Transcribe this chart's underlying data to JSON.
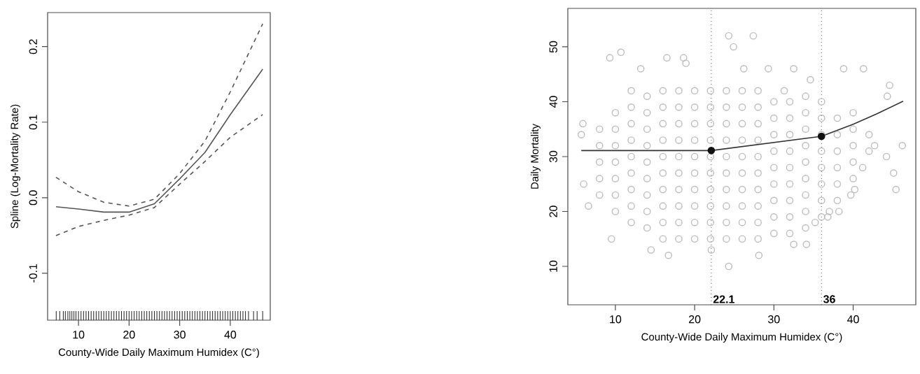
{
  "chart_data": [
    {
      "type": "line",
      "xlabel": "County-Wide Daily Maximum Humidex (C°)",
      "ylabel": "Spline (Log-Mortality Rate)",
      "xlim": [
        3.9,
        47.9
      ],
      "ylim": [
        -0.162,
        0.245
      ],
      "xticks": [
        10,
        20,
        30,
        40
      ],
      "yticks": [
        -0.1,
        {
          "value": 0,
          "label": "0.0"
        },
        0.1,
        0.2
      ],
      "series": [
        {
          "color": "#555555",
          "line_style": "solid",
          "x": [
            5.55,
            10,
            15,
            20,
            25,
            30,
            35,
            40,
            46.4
          ],
          "values": [
            -0.012,
            -0.015,
            -0.019,
            -0.019,
            -0.008,
            0.025,
            0.06,
            0.11,
            0.17
          ]
        },
        {
          "color": "#555555",
          "line_style": "dashed",
          "x": [
            5.55,
            10,
            15,
            20,
            25,
            30,
            35,
            40,
            46.4
          ],
          "values": [
            0.027,
            0.008,
            -0.006,
            -0.011,
            -0.002,
            0.032,
            0.075,
            0.14,
            0.23
          ]
        },
        {
          "color": "#555555",
          "line_style": "dashed",
          "x": [
            5.55,
            10,
            15,
            20,
            25,
            30,
            35,
            40,
            46.4
          ],
          "values": [
            -0.05,
            -0.038,
            -0.03,
            -0.023,
            -0.013,
            0.018,
            0.048,
            0.08,
            0.11
          ]
        },
        {
          "type": "bar",
          "color": "#222222",
          "base": [
            -0.162,
            -0.162,
            -0.162,
            -0.162,
            -0.162,
            -0.162,
            -0.162,
            -0.162,
            -0.162,
            -0.162,
            -0.162,
            -0.162,
            -0.162,
            -0.162,
            -0.162,
            -0.162,
            -0.162,
            -0.162,
            -0.162,
            -0.162,
            -0.162,
            -0.162,
            -0.162,
            -0.162,
            -0.162,
            -0.162,
            -0.162,
            -0.162,
            -0.162,
            -0.162,
            -0.162,
            -0.162,
            -0.162,
            -0.162,
            -0.162,
            -0.162,
            -0.162,
            -0.162,
            -0.162,
            -0.162,
            -0.162,
            -0.162,
            -0.162,
            -0.162,
            -0.162,
            -0.162,
            -0.162,
            -0.162,
            -0.162,
            -0.162,
            -0.162,
            -0.162,
            -0.162,
            -0.162,
            -0.162,
            -0.162,
            -0.162,
            -0.162,
            -0.162,
            -0.162,
            -0.162,
            -0.162,
            -0.162,
            -0.162,
            -0.162,
            -0.162,
            -0.162,
            -0.162,
            -0.162,
            -0.162,
            -0.162,
            -0.162,
            -0.162,
            -0.162,
            -0.162,
            -0.162,
            -0.162,
            -0.162,
            -0.162,
            -0.162
          ],
          "x": [
            5.6,
            6.3,
            7,
            7.4,
            7.9,
            8.3,
            8.7,
            9.1,
            9.5,
            10,
            10.5,
            11,
            11.5,
            12,
            12.5,
            13,
            13.5,
            14,
            14.5,
            15,
            15.5,
            16,
            16.5,
            17,
            17.5,
            18,
            18.5,
            19,
            19.5,
            20,
            20.5,
            21,
            21.5,
            22,
            22.5,
            23,
            23.5,
            24,
            24.5,
            25,
            25.5,
            26,
            26.5,
            27,
            27.5,
            28,
            28.5,
            29,
            29.5,
            30,
            30.5,
            31,
            31.5,
            32,
            32.5,
            33,
            33.5,
            34,
            34.5,
            35,
            35.5,
            36,
            36.5,
            37,
            37.5,
            38,
            38.5,
            39,
            39.5,
            40,
            40.5,
            41,
            41.5,
            42,
            42.5,
            43,
            43.6,
            44.6,
            45.3,
            46.4
          ],
          "values": [
            0.012,
            0.012,
            0.012,
            0.012,
            0.012,
            0.012,
            0.012,
            0.012,
            0.012,
            0.012,
            0.012,
            0.012,
            0.012,
            0.012,
            0.012,
            0.012,
            0.012,
            0.012,
            0.012,
            0.012,
            0.012,
            0.012,
            0.012,
            0.012,
            0.012,
            0.012,
            0.012,
            0.012,
            0.012,
            0.012,
            0.012,
            0.012,
            0.012,
            0.012,
            0.012,
            0.012,
            0.012,
            0.012,
            0.012,
            0.012,
            0.012,
            0.012,
            0.012,
            0.012,
            0.012,
            0.012,
            0.012,
            0.012,
            0.012,
            0.012,
            0.012,
            0.012,
            0.012,
            0.012,
            0.012,
            0.012,
            0.012,
            0.012,
            0.012,
            0.012,
            0.012,
            0.012,
            0.012,
            0.012,
            0.012,
            0.012,
            0.012,
            0.012,
            0.012,
            0.012,
            0.012,
            0.012,
            0.012,
            0.012,
            0.012,
            0.012,
            0.012,
            0.012,
            0.012,
            0.012
          ]
        }
      ]
    },
    {
      "type": "scatter",
      "xlabel": "County-Wide Daily Maximum Humidex (C°)",
      "ylabel": "Daily Mortality",
      "xlim": [
        4.0,
        47.9
      ],
      "ylim": [
        3,
        57
      ],
      "xticks": [
        10,
        20,
        30,
        40
      ],
      "yticks": [
        10,
        20,
        30,
        40,
        50
      ],
      "series": [
        {
          "marker": "circle",
          "color": "#bdbdbd",
          "x": [
            8,
            8,
            8,
            8,
            8,
            10,
            10,
            10,
            10,
            10,
            10,
            10,
            12,
            12,
            12,
            12,
            12,
            12,
            12,
            12,
            12,
            14,
            14,
            14,
            14,
            14,
            14,
            14,
            14,
            14,
            16,
            16,
            16,
            16,
            16,
            16,
            16,
            16,
            16,
            16,
            18,
            18,
            18,
            18,
            18,
            18,
            18,
            18,
            18,
            18,
            20,
            20,
            20,
            20,
            20,
            20,
            20,
            20,
            20,
            20,
            22,
            22,
            22,
            22,
            22,
            22,
            22,
            22,
            22,
            22,
            24,
            24,
            24,
            24,
            24,
            24,
            24,
            24,
            24,
            24,
            26,
            26,
            26,
            26,
            26,
            26,
            26,
            26,
            26,
            26,
            28,
            28,
            28,
            28,
            28,
            28,
            28,
            28,
            28,
            28,
            30,
            30,
            30,
            30,
            30,
            30,
            30,
            30,
            30,
            32,
            32,
            32,
            32,
            32,
            32,
            32,
            32,
            32,
            34,
            34,
            34,
            34,
            34,
            34,
            34,
            34,
            34,
            36,
            36,
            36,
            36,
            36,
            36,
            36,
            36,
            38,
            38,
            38,
            38,
            38,
            38,
            40,
            40,
            40,
            40,
            40,
            42,
            42,
            5.7,
            5.9,
            6,
            6.6,
            9.3,
            10.7,
            9.5,
            13.2,
            16.5,
            18.6,
            18.9,
            24.3,
            24.9,
            27.4,
            26.2,
            29.3,
            32.5,
            38.8,
            41.3,
            44.6,
            44.3,
            46.2,
            44.2,
            45.1,
            45.4,
            39.7,
            38.2,
            34.1,
            32.5,
            28.1,
            24.3,
            22.1,
            16.7,
            14.5,
            42.7,
            41.2,
            40.2,
            34.6,
            31.3,
            37,
            36.8,
            35.2
          ],
          "values": [
            23,
            26,
            29,
            32,
            35,
            20,
            23,
            26,
            29,
            32,
            35,
            38,
            18,
            21,
            24,
            27,
            30,
            33,
            36,
            39,
            42,
            17,
            20,
            23,
            26,
            29,
            32,
            35,
            38,
            41,
            15,
            18,
            21,
            24,
            27,
            30,
            33,
            36,
            39,
            42,
            15,
            18,
            21,
            24,
            27,
            30,
            33,
            36,
            39,
            42,
            15,
            18,
            21,
            24,
            27,
            30,
            33,
            36,
            39,
            42,
            15,
            18,
            21,
            24,
            27,
            30,
            33,
            36,
            39,
            42,
            15,
            18,
            21,
            24,
            27,
            30,
            33,
            36,
            39,
            42,
            15,
            18,
            21,
            24,
            27,
            30,
            33,
            36,
            39,
            42,
            15,
            18,
            21,
            24,
            27,
            30,
            33,
            36,
            39,
            42,
            16,
            19,
            22,
            25,
            28,
            31,
            34,
            37,
            40,
            16,
            19,
            22,
            25,
            28,
            31,
            34,
            37,
            40,
            17,
            20,
            23,
            26,
            29,
            32,
            35,
            38,
            41,
            19,
            22,
            25,
            28,
            31,
            34,
            37,
            40,
            22,
            25,
            28,
            31,
            34,
            37,
            26,
            29,
            32,
            35,
            38,
            31,
            34,
            34,
            36,
            25,
            21,
            48,
            49,
            15,
            46,
            48,
            48,
            47,
            52,
            50,
            52,
            46,
            46,
            46,
            46,
            46,
            43,
            41,
            32,
            30,
            27,
            24,
            23,
            20,
            14,
            14,
            12,
            10,
            13,
            12,
            13,
            32,
            28,
            24,
            44,
            42,
            20,
            19,
            18
          ]
        },
        {
          "type": "line",
          "color": "#333333",
          "x": [
            5.7,
            22.1,
            36,
            40,
            43,
            46.3
          ],
          "values": [
            31.1,
            31.1,
            33.7,
            35.9,
            37.8,
            40.1
          ]
        },
        {
          "marker": "circle",
          "color": "#111111",
          "x": [
            22.1,
            36
          ],
          "values": [
            31.1,
            33.7
          ]
        }
      ],
      "ref_lines": [
        {
          "axis": "x",
          "value": 22.1,
          "label": "22.1",
          "color": "#555555",
          "line_style": "dotted"
        },
        {
          "axis": "x",
          "value": 36,
          "label": "36",
          "color": "#555555",
          "line_style": "dotted"
        }
      ]
    }
  ]
}
